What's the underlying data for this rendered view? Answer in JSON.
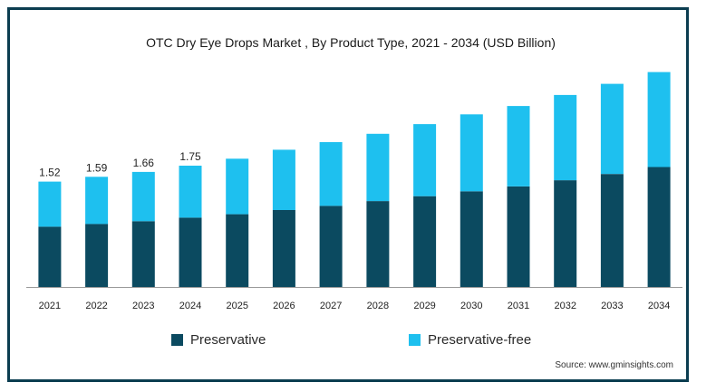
{
  "chart_data": {
    "type": "bar",
    "stacked": true,
    "title": "OTC Dry Eye Drops Market , By Product Type, 2021 - 2034 (USD Billion)",
    "categories": [
      "2021",
      "2022",
      "2023",
      "2024",
      "2025",
      "2026",
      "2027",
      "2028",
      "2029",
      "2030",
      "2031",
      "2032",
      "2033",
      "2034"
    ],
    "series": [
      {
        "name": "Preservative",
        "color": "#0b4a60",
        "values": [
          0.87,
          0.91,
          0.95,
          1.0,
          1.05,
          1.11,
          1.17,
          1.24,
          1.31,
          1.38,
          1.45,
          1.54,
          1.63,
          1.73
        ]
      },
      {
        "name": "Preservative-free",
        "color": "#1ec0ef",
        "values": [
          0.65,
          0.68,
          0.71,
          0.75,
          0.8,
          0.87,
          0.92,
          0.97,
          1.04,
          1.11,
          1.16,
          1.23,
          1.3,
          1.37
        ]
      }
    ],
    "data_labels": [
      "1.52",
      "1.59",
      "1.66",
      "1.75",
      "",
      "",
      "",
      "",
      "",
      "",
      "",
      "",
      "",
      ""
    ],
    "ylim": [
      0,
      3.5
    ],
    "grid": false,
    "legend_position": "bottom"
  },
  "legend": {
    "preservative": "Preservative",
    "preservative_free": "Preservative-free"
  },
  "source": "Source: www.gminsights.com"
}
